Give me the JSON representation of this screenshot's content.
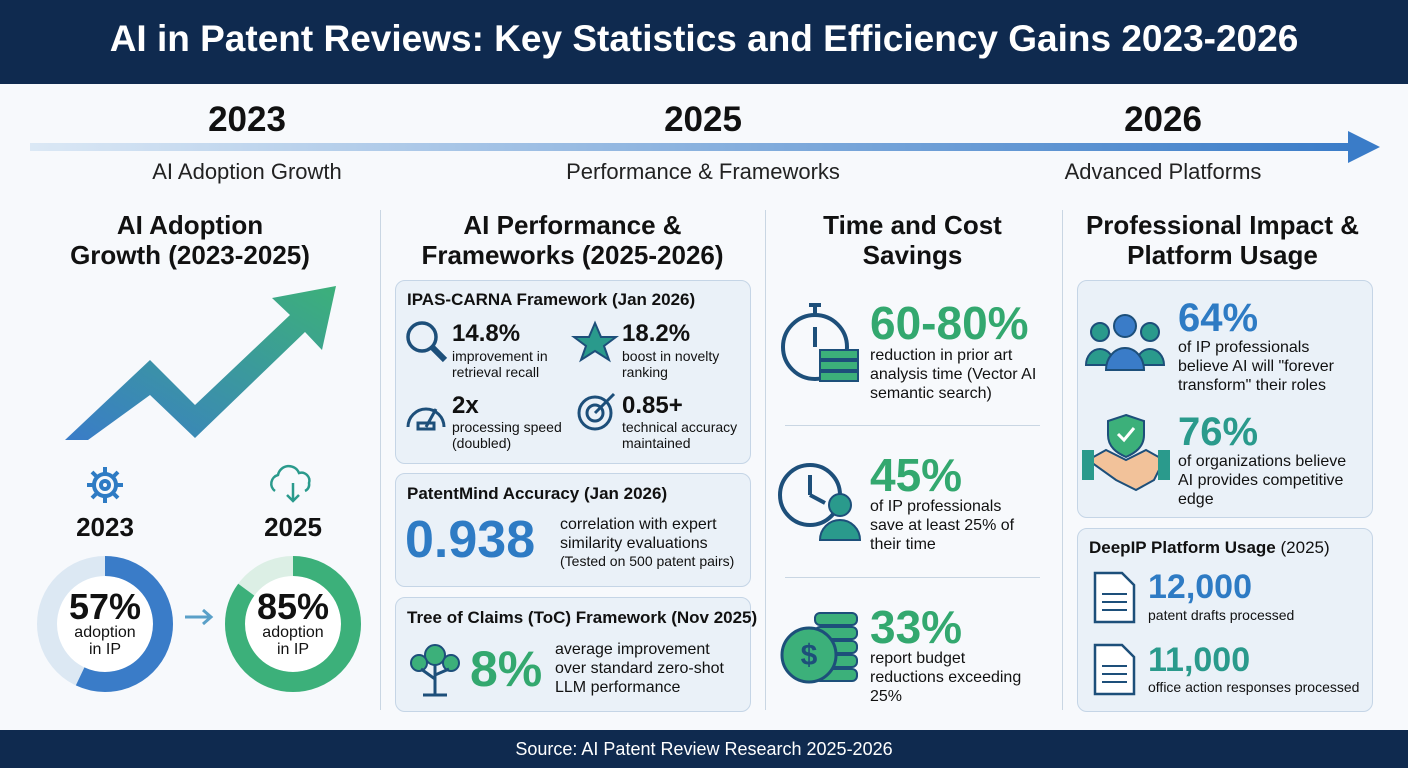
{
  "header": {
    "title": "AI in Patent Reviews: Key Statistics and Efficiency Gains 2023-2026"
  },
  "timeline": [
    {
      "year": "2023",
      "label": "AI Adoption Growth"
    },
    {
      "year": "2025",
      "label": "Performance & Frameworks"
    },
    {
      "year": "2026",
      "label": "Advanced Platforms"
    }
  ],
  "adoption": {
    "title": "AI Adoption Growth (2023-2025)",
    "items": [
      {
        "year": "2023",
        "value": 57,
        "value_label": "57%",
        "caption": "adoption in IP"
      },
      {
        "year": "2025",
        "value": 85,
        "value_label": "85%",
        "caption": "adoption in IP"
      }
    ]
  },
  "performance": {
    "title": "AI Performance & Frameworks (2025-2026)",
    "ipas": {
      "title": "IPAS-CARNA Framework (Jan 2026)",
      "stats": [
        {
          "value": "14.8%",
          "text": "improvement in retrieval recall"
        },
        {
          "value": "18.2%",
          "text": "boost in novelty ranking"
        },
        {
          "value": "2x",
          "text": "processing speed (doubled)"
        },
        {
          "value": "0.85+",
          "text": "technical accuracy maintained"
        }
      ]
    },
    "patentmind": {
      "title": "PatentMind Accuracy (Jan 2026)",
      "value": "0.938",
      "text": "correlation with expert similarity evaluations",
      "note": "(Tested on 500 patent pairs)"
    },
    "toc": {
      "title": "Tree of Claims (ToC) Framework (Nov 2025)",
      "value": "8%",
      "text": "average improvement over standard zero-shot LLM performance"
    }
  },
  "savings": {
    "title": "Time and Cost Savings",
    "items": [
      {
        "value": "60-80%",
        "text": "reduction in prior art analysis time (Vector AI semantic search)"
      },
      {
        "value": "45%",
        "text": "of IP professionals save at least 25% of their time"
      },
      {
        "value": "33%",
        "text": "report budget reductions exceeding 25%"
      }
    ]
  },
  "impact": {
    "title": "Professional Impact & Platform Usage",
    "items": [
      {
        "value": "64%",
        "text": "of IP professionals believe AI will \"forever transform\" their roles"
      },
      {
        "value": "76%",
        "text": "of organizations believe AI provides competitive edge"
      }
    ],
    "platform": {
      "title": "DeepIP Platform Usage",
      "year": "(2025)",
      "items": [
        {
          "value": "12,000",
          "text": "patent drafts processed"
        },
        {
          "value": "11,000",
          "text": "office action responses processed"
        }
      ]
    }
  },
  "footer": {
    "source": "Source: AI Patent Review Research 2025-2026"
  }
}
